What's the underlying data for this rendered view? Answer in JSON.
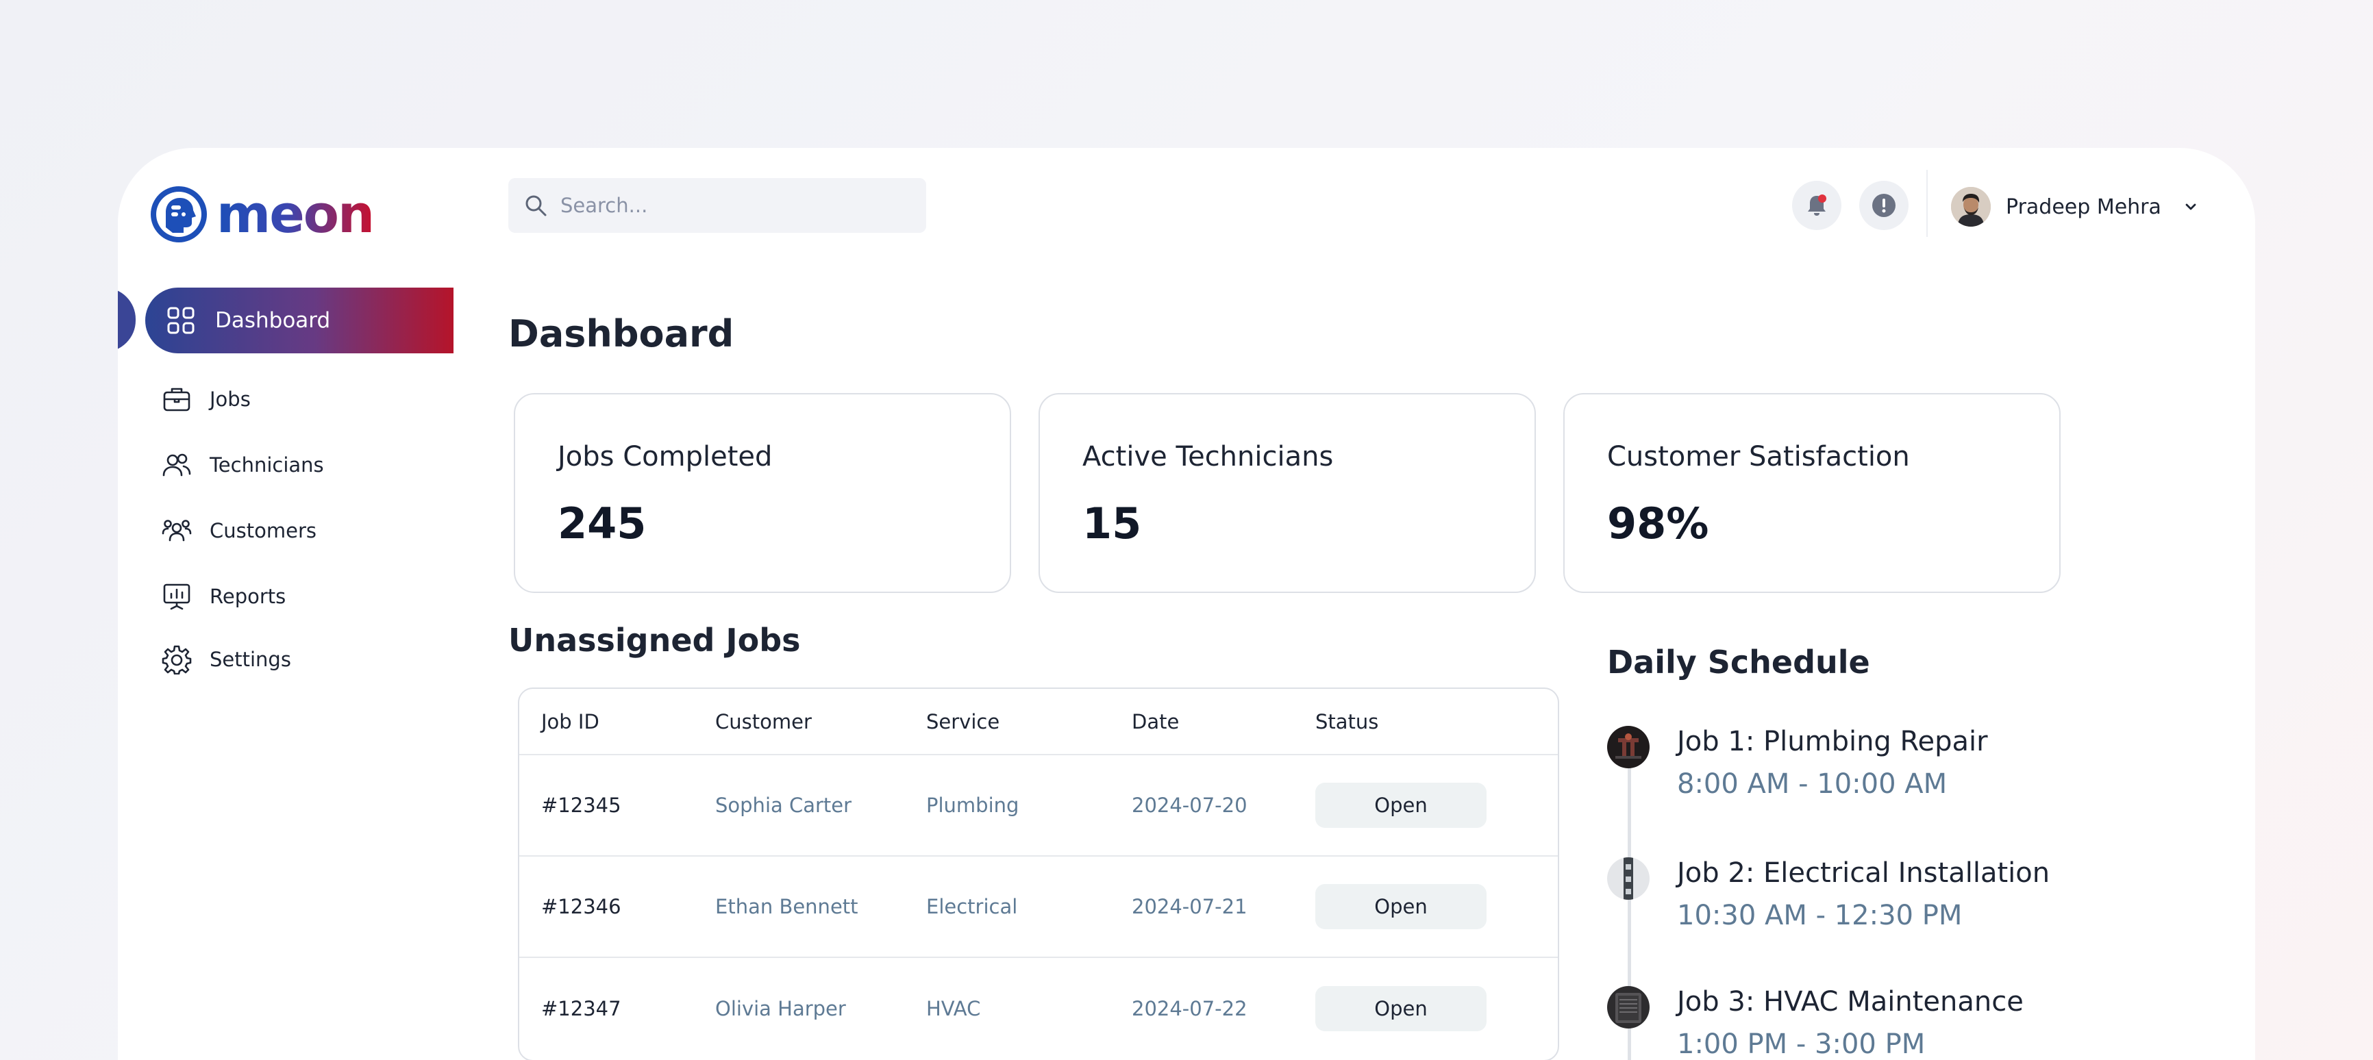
{
  "brand": {
    "name": "meon",
    "colors": {
      "primary": "#2c4494",
      "accent": "#b5142a"
    }
  },
  "sidebar": {
    "items": [
      {
        "label": "Dashboard",
        "icon": "grid-icon",
        "active": true
      },
      {
        "label": "Jobs",
        "icon": "briefcase-icon"
      },
      {
        "label": "Technicians",
        "icon": "users-icon"
      },
      {
        "label": "Customers",
        "icon": "customers-icon"
      },
      {
        "label": "Reports",
        "icon": "chart-board-icon"
      },
      {
        "label": "Settings",
        "icon": "gear-icon"
      }
    ]
  },
  "header": {
    "search": {
      "placeholder": "Search...",
      "value": ""
    },
    "notifications_icon": "bell-icon",
    "info_icon": "alert-circle-icon",
    "user": {
      "name": "Pradeep Mehra",
      "avatar_icon": "user-avatar"
    }
  },
  "main": {
    "title": "Dashboard",
    "stats": [
      {
        "label": "Jobs Completed",
        "value": "245"
      },
      {
        "label": "Active Technicians",
        "value": "15"
      },
      {
        "label": "Customer Satisfaction",
        "value": "98%"
      }
    ],
    "unassigned": {
      "title": "Unassigned Jobs",
      "columns": [
        "Job ID",
        "Customer",
        "Service",
        "Date",
        "Status"
      ],
      "rows": [
        {
          "id": "#12345",
          "customer": "Sophia Carter",
          "service": "Plumbing",
          "date": "2024-07-20",
          "status": "Open"
        },
        {
          "id": "#12346",
          "customer": "Ethan Bennett",
          "service": "Electrical",
          "date": "2024-07-21",
          "status": "Open"
        },
        {
          "id": "#12347",
          "customer": "Olivia Harper",
          "service": "HVAC",
          "date": "2024-07-22",
          "status": "Open"
        }
      ]
    },
    "schedule": {
      "title": "Daily Schedule",
      "items": [
        {
          "title": "Job 1: Plumbing Repair",
          "time": "8:00 AM - 10:00 AM"
        },
        {
          "title": "Job 2: Electrical Installation",
          "time": "10:30 AM - 12:30 PM"
        },
        {
          "title": "Job 3: HVAC Maintenance",
          "time": "1:00 PM - 3:00 PM"
        }
      ]
    }
  }
}
